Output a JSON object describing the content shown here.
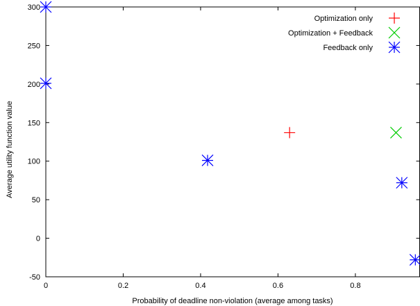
{
  "chart_data": {
    "type": "scatter",
    "title": "",
    "xlabel": "Probability of deadline non-violation (average among tasks)",
    "ylabel": "Average utility function value",
    "xlim": [
      0,
      0.967
    ],
    "ylim": [
      -50,
      300
    ],
    "x_ticks": [
      "0",
      "0.2",
      "0.4",
      "0.6",
      "0.8"
    ],
    "y_ticks": [
      "-50",
      "0",
      "50",
      "100",
      "150",
      "200",
      "250",
      "300"
    ],
    "grid": false,
    "legend_position": "top-right",
    "series": [
      {
        "name": "Optimization only",
        "marker": "plus",
        "color": "#ff0000",
        "points": [
          [
            0.63,
            137
          ]
        ]
      },
      {
        "name": "Optimization + Feedback",
        "marker": "cross",
        "color": "#00cc00",
        "points": [
          [
            0.905,
            137
          ]
        ]
      },
      {
        "name": "Feedback only",
        "marker": "star",
        "color": "#0000ff",
        "points": [
          [
            0.0,
            300
          ],
          [
            0.0,
            201
          ],
          [
            0.418,
            101
          ],
          [
            0.92,
            72
          ],
          [
            0.955,
            -28
          ]
        ]
      }
    ]
  }
}
